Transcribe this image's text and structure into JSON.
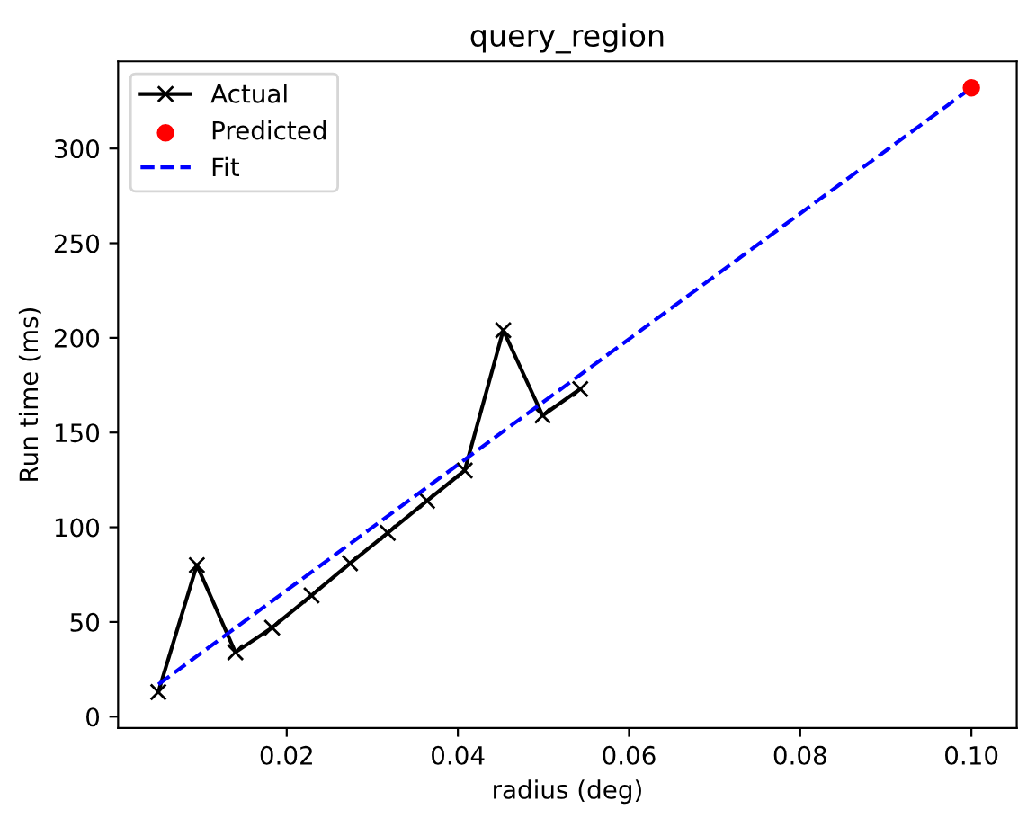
{
  "chart_data": {
    "type": "line",
    "title": "query_region",
    "xlabel": "radius (deg)",
    "ylabel": "Run time (ms)",
    "series": [
      {
        "name": "Actual",
        "color": "#000000",
        "marker": "cross",
        "line_style": "solid",
        "x": [
          0.005,
          0.0095,
          0.014,
          0.0183,
          0.0229,
          0.0274,
          0.0318,
          0.0364,
          0.0408,
          0.0453,
          0.0499,
          0.0543
        ],
        "values": [
          13,
          80,
          34,
          47,
          64,
          81,
          97,
          114,
          130,
          204,
          159,
          173
        ]
      },
      {
        "name": "Predicted",
        "type": "scatter",
        "color": "#ff0000",
        "marker": "circle",
        "x": [
          0.1
        ],
        "values": [
          332
        ]
      },
      {
        "name": "Fit",
        "color": "#0000ff",
        "marker": "none",
        "line_style": "dashed",
        "x": [
          0.005,
          0.1
        ],
        "values": [
          17,
          332
        ]
      }
    ],
    "xlim": [
      0.0003,
      0.1053
    ],
    "ylim": [
      -6,
      346
    ],
    "xticks": [
      {
        "value": 0.02,
        "label": "0.02"
      },
      {
        "value": 0.04,
        "label": "0.04"
      },
      {
        "value": 0.06,
        "label": "0.06"
      },
      {
        "value": 0.08,
        "label": "0.08"
      },
      {
        "value": 0.1,
        "label": "0.10"
      }
    ],
    "yticks": [
      0,
      50,
      100,
      150,
      200,
      250,
      300
    ],
    "grid": false,
    "legend": "top left"
  }
}
